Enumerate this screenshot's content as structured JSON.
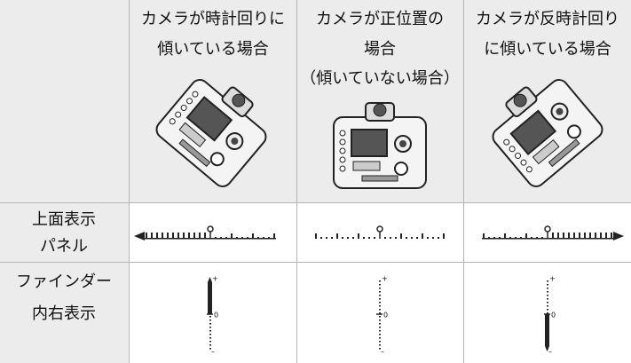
{
  "table": {
    "header": [
      [
        "カメラが時計回りに",
        "傾いている場合"
      ],
      [
        "カメラが正位置の",
        "場合",
        "（傾いていない場合）"
      ],
      [
        "カメラが反時計回り",
        "に傾いている場合"
      ]
    ],
    "rows": [
      [
        "上面表示",
        "パネル"
      ],
      [
        "ファインダー",
        "内右表示"
      ]
    ],
    "indicator_labels": {
      "plus": "+",
      "zero": "0",
      "minus": "–"
    }
  }
}
